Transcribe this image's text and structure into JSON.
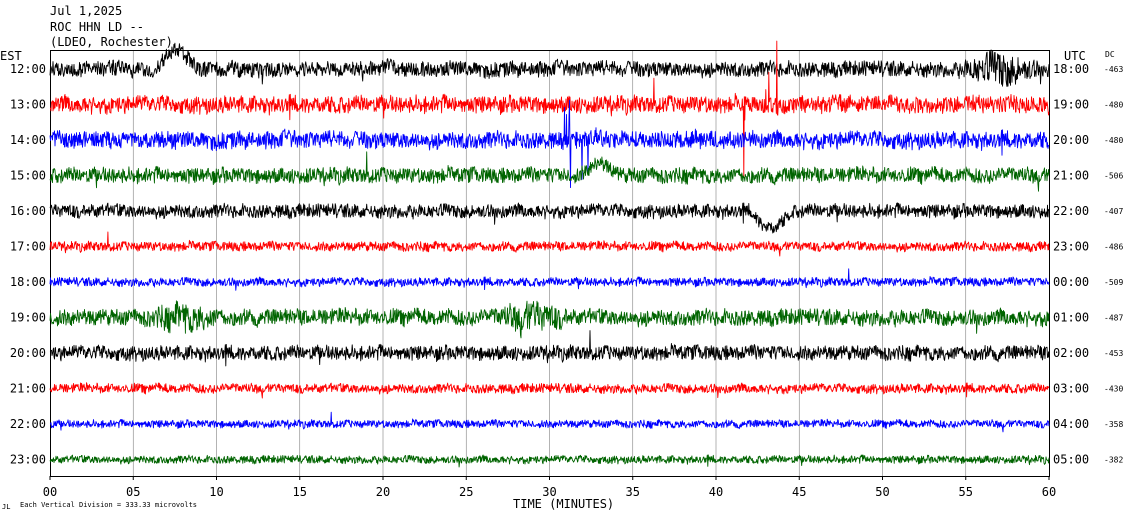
{
  "header": {
    "date": "Jul 1,2025",
    "station": "ROC HHN LD --",
    "network": "(LDEO, Rochester)"
  },
  "axis_labels": {
    "left_tz": "EST",
    "right_tz": "UTC",
    "dc": "DC",
    "x_title": "TIME (MINUTES)",
    "footer": "Each Vertical Division =  333.33 microvolts",
    "footer_mark": "JL"
  },
  "chart_data": {
    "type": "line",
    "title": "",
    "xlabel": "TIME (MINUTES)",
    "ylabel": "",
    "xlim": [
      0,
      60
    ],
    "x_ticks": [
      "00",
      "05",
      "10",
      "15",
      "20",
      "25",
      "30",
      "35",
      "40",
      "45",
      "50",
      "55",
      "60"
    ],
    "vertical_division_microvolts": 333.33,
    "rows": [
      {
        "est": "12:00",
        "utc": "18:00",
        "dc": "-463",
        "color": "#000000"
      },
      {
        "est": "13:00",
        "utc": "19:00",
        "dc": "-480",
        "color": "#ff0000"
      },
      {
        "est": "14:00",
        "utc": "20:00",
        "dc": "-480",
        "color": "#0000ff"
      },
      {
        "est": "15:00",
        "utc": "21:00",
        "dc": "-506",
        "color": "#006400"
      },
      {
        "est": "16:00",
        "utc": "22:00",
        "dc": "-407",
        "color": "#000000"
      },
      {
        "est": "17:00",
        "utc": "23:00",
        "dc": "-486",
        "color": "#ff0000"
      },
      {
        "est": "18:00",
        "utc": "00:00",
        "dc": "-509",
        "color": "#0000ff"
      },
      {
        "est": "19:00",
        "utc": "01:00",
        "dc": "-487",
        "color": "#006400"
      },
      {
        "est": "20:00",
        "utc": "02:00",
        "dc": "-453",
        "color": "#000000"
      },
      {
        "est": "21:00",
        "utc": "03:00",
        "dc": "-430",
        "color": "#ff0000"
      },
      {
        "est": "22:00",
        "utc": "04:00",
        "dc": "-358",
        "color": "#0000ff"
      },
      {
        "est": "23:00",
        "utc": "05:00",
        "dc": "-382",
        "color": "#006400"
      }
    ],
    "amplitude_profile": [
      0.9,
      1.0,
      1.0,
      0.9,
      0.8,
      0.55,
      0.5,
      0.95,
      0.85,
      0.55,
      0.45,
      0.45
    ],
    "events": [
      {
        "row": 0,
        "minute": 7.6,
        "kind": "pulse",
        "magnitude": 1.4
      },
      {
        "row": 0,
        "minute": 57,
        "kind": "burst",
        "magnitude": 1.6
      },
      {
        "row": 1,
        "minute": 42.5,
        "kind": "spikes",
        "magnitude": 3.0
      },
      {
        "row": 2,
        "minute": 32,
        "kind": "spikes",
        "magnitude": 1.6
      },
      {
        "row": 3,
        "minute": 33,
        "kind": "pulse",
        "magnitude": 0.8
      },
      {
        "row": 4,
        "minute": 43.3,
        "kind": "pulse",
        "magnitude": 1.2
      },
      {
        "row": 7,
        "minute": 29,
        "kind": "burst",
        "magnitude": 1.2
      },
      {
        "row": 7,
        "minute": 8,
        "kind": "burst",
        "magnitude": 1.0
      }
    ]
  }
}
